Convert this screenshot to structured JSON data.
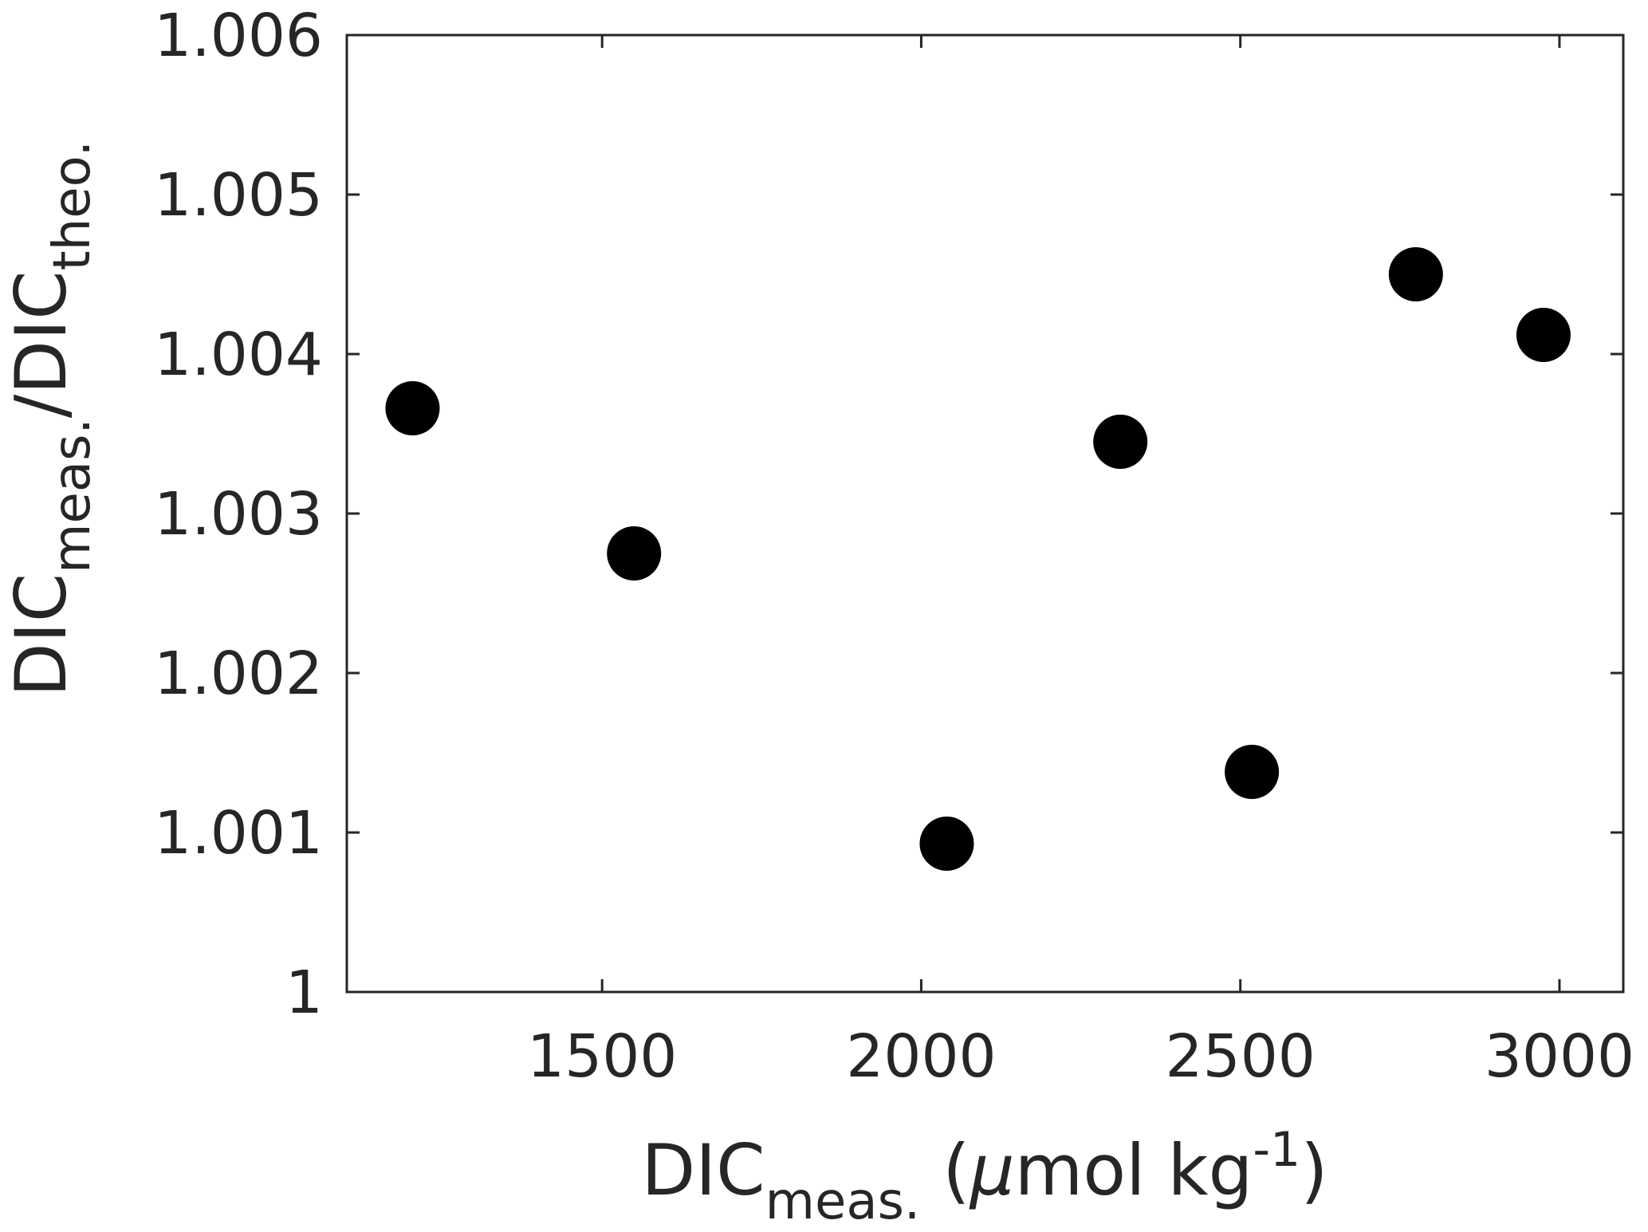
{
  "chart_data": {
    "type": "scatter",
    "title": "",
    "xlabel": {
      "base": "DIC",
      "sub": "meas.",
      "rest_open": " (",
      "mu": "μ",
      "rest": "mol kg",
      "sup": "-1",
      "close": ")"
    },
    "ylabel": {
      "base1": "DIC",
      "sub1": "meas.",
      "slash": "/",
      "base2": "DIC",
      "sub2": "theo."
    },
    "xlim": [
      1100,
      3100
    ],
    "ylim": [
      1.0,
      1.006
    ],
    "xticks": [
      1500,
      2000,
      2500,
      3000
    ],
    "xtick_labels": [
      "1500",
      "2000",
      "2500",
      "3000"
    ],
    "yticks": [
      1.0,
      1.001,
      1.002,
      1.003,
      1.004,
      1.005,
      1.006
    ],
    "ytick_labels": [
      "1",
      "1.001",
      "1.002",
      "1.003",
      "1.004",
      "1.005",
      "1.006"
    ],
    "grid": false,
    "marker_color": "#000000",
    "points": [
      {
        "x": 1203,
        "y": 1.00366
      },
      {
        "x": 1550,
        "y": 1.00275
      },
      {
        "x": 2040,
        "y": 1.00093
      },
      {
        "x": 2312,
        "y": 1.00345
      },
      {
        "x": 2518,
        "y": 1.00138
      },
      {
        "x": 2775,
        "y": 1.0045
      },
      {
        "x": 2975,
        "y": 1.00412
      }
    ]
  }
}
